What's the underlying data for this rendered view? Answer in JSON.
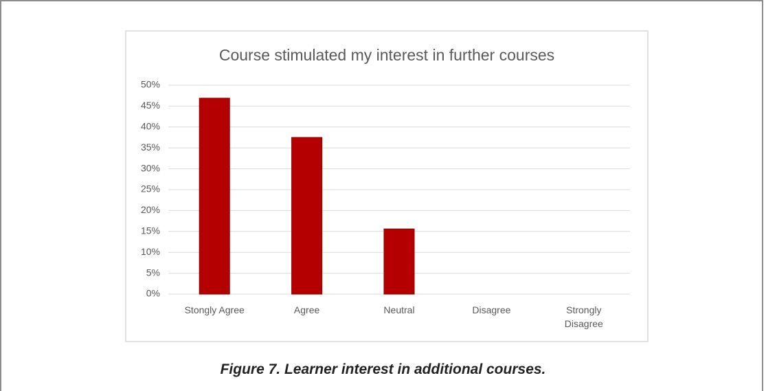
{
  "chart_data": {
    "type": "bar",
    "title": "Course stimulated my interest in further courses",
    "categories": [
      "Stongly Agree",
      "Agree",
      "Neutral",
      "Disagree",
      "Strongly Disagree"
    ],
    "values": [
      46.9,
      37.5,
      15.6,
      0,
      0
    ],
    "color": "#b50000",
    "ylim": [
      0,
      50
    ],
    "yticks": [
      {
        "value": 0,
        "label": "0%"
      },
      {
        "value": 5,
        "label": "5%"
      },
      {
        "value": 10,
        "label": "10%"
      },
      {
        "value": 15,
        "label": "15%"
      },
      {
        "value": 20,
        "label": "20%"
      },
      {
        "value": 25,
        "label": "25%"
      },
      {
        "value": 30,
        "label": "30%"
      },
      {
        "value": 35,
        "label": "35%"
      },
      {
        "value": 40,
        "label": "40%"
      },
      {
        "value": 45,
        "label": "45%"
      },
      {
        "value": 50,
        "label": "50%"
      }
    ],
    "grid": true
  },
  "caption": "Figure 7. Learner interest in additional courses."
}
